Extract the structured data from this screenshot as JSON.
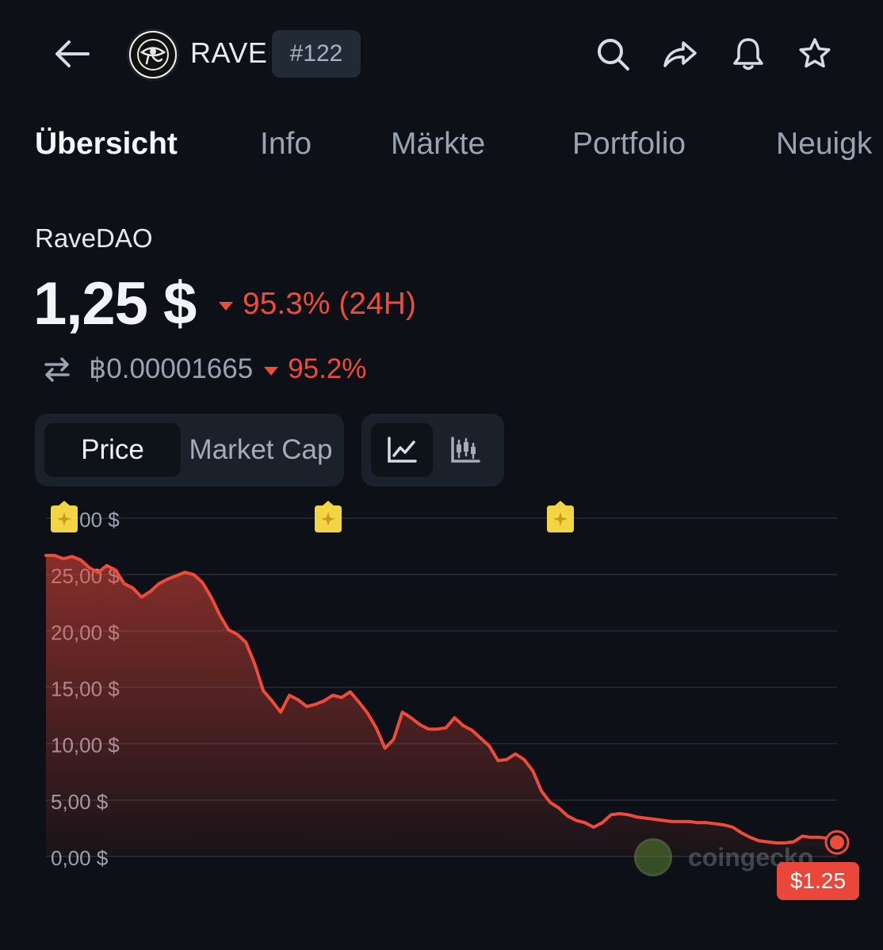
{
  "header": {
    "symbol": "RAVE",
    "rank": "#122"
  },
  "tabs": [
    {
      "label": "Übersicht",
      "active": true
    },
    {
      "label": "Info",
      "active": false
    },
    {
      "label": "Märkte",
      "active": false
    },
    {
      "label": "Portfolio",
      "active": false
    },
    {
      "label": "Neuigk",
      "active": false
    }
  ],
  "coin": {
    "name": "RaveDAO",
    "price": "1,25 $",
    "change_24h": "95.3% (24H)",
    "btc_price": "฿0.00001665",
    "btc_change": "95.2%"
  },
  "toggles": {
    "price": "Price",
    "market_cap": "Market Cap"
  },
  "colors": {
    "background": "#0d1117",
    "negative": "#ee4b3b",
    "marker": "#f2d545"
  },
  "icons": {
    "back": "arrow-left-icon",
    "search": "search-icon",
    "share": "share-icon",
    "alert": "bell-icon",
    "watchlist": "star-icon",
    "convert": "swap-arrows-icon",
    "line_chart": "line-chart-icon",
    "candle_chart": "candlestick-icon"
  },
  "watermark": "coingecko",
  "chart_data": {
    "type": "area",
    "ylim": [
      0,
      30
    ],
    "y_ticks": [
      "0,00 $",
      "5,00 $",
      "10,00 $",
      "15,00 $",
      "20,00 $",
      "25,00 $",
      "30,00 $"
    ],
    "grid": true,
    "last_value_label": "$1.25",
    "series": [
      {
        "values": [
          26.7,
          26.7,
          26.4,
          26.6,
          26.3,
          25.6,
          25.2,
          25.8,
          25.4,
          24.2,
          23.8,
          23.0,
          23.5,
          24.2,
          24.6,
          24.9,
          25.2,
          25.0,
          24.3,
          23.0,
          21.4,
          20.1,
          19.7,
          19.0,
          17.1,
          14.7,
          13.8,
          12.8,
          14.3,
          13.9,
          13.3,
          13.5,
          13.8,
          14.3,
          14.1,
          14.6,
          13.7,
          12.7,
          11.4,
          9.6,
          10.4,
          12.8,
          12.3,
          11.7,
          11.3,
          11.3,
          11.4,
          12.3,
          11.6,
          11.2,
          10.5,
          9.8,
          8.5,
          8.6,
          9.1,
          8.6,
          7.6,
          5.8,
          4.8,
          4.3,
          3.6,
          3.2,
          3.0,
          2.6,
          3.0,
          3.7,
          3.8,
          3.7,
          3.5,
          3.4,
          3.3,
          3.2,
          3.1,
          3.1,
          3.1,
          3.0,
          3.0,
          2.9,
          2.8,
          2.6,
          2.1,
          1.7,
          1.4,
          1.3,
          1.2,
          1.2,
          1.3,
          1.8,
          1.7,
          1.7,
          1.6,
          1.25
        ]
      }
    ]
  }
}
